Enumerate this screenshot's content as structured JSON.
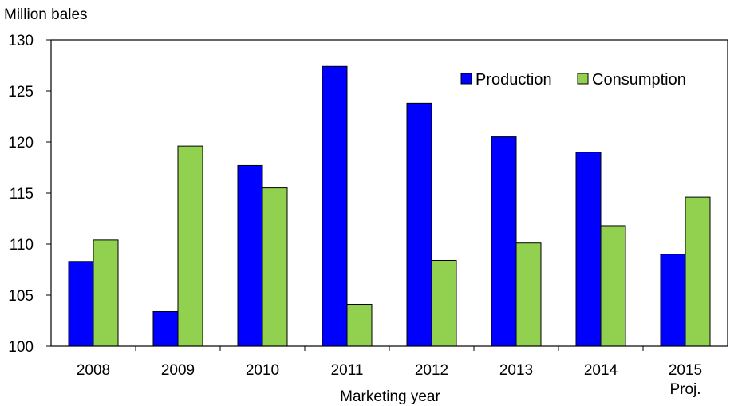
{
  "chart_data": {
    "type": "bar",
    "ylabel": "Million bales",
    "xlabel": "Marketing year",
    "ylim": [
      100,
      130
    ],
    "yticks": [
      100,
      105,
      110,
      115,
      120,
      125,
      130
    ],
    "grid": false,
    "legend_position": "top-right",
    "categories": [
      "2008",
      "2009",
      "2010",
      "2011",
      "2012",
      "2013",
      "2014",
      "2015"
    ],
    "category_sublabels": [
      "",
      "",
      "",
      "",
      "",
      "",
      "",
      "Proj."
    ],
    "series": [
      {
        "name": "Production",
        "color": "#0000ff",
        "values": [
          108.3,
          103.4,
          117.7,
          127.4,
          123.8,
          120.5,
          119.0,
          109.0
        ]
      },
      {
        "name": "Consumption",
        "color": "#92d050",
        "values": [
          110.4,
          119.6,
          115.5,
          104.1,
          108.4,
          110.1,
          111.8,
          114.6
        ]
      }
    ]
  }
}
